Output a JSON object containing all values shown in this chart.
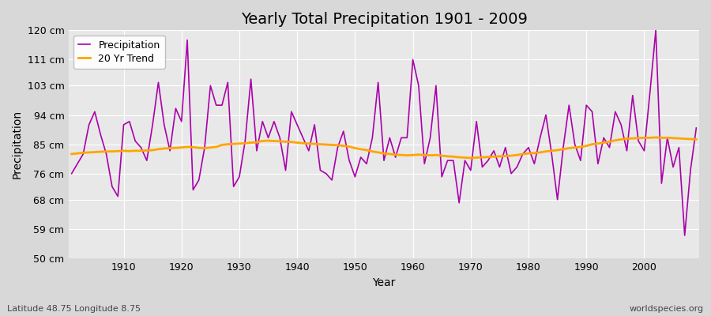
{
  "title": "Yearly Total Precipitation 1901 - 2009",
  "xlabel": "Year",
  "ylabel": "Precipitation",
  "subtitle": "Latitude 48.75 Longitude 8.75",
  "watermark": "worldspecies.org",
  "years": [
    1901,
    1902,
    1903,
    1904,
    1905,
    1906,
    1907,
    1908,
    1909,
    1910,
    1911,
    1912,
    1913,
    1914,
    1915,
    1916,
    1917,
    1918,
    1919,
    1920,
    1921,
    1922,
    1923,
    1924,
    1925,
    1926,
    1927,
    1928,
    1929,
    1930,
    1931,
    1932,
    1933,
    1934,
    1935,
    1936,
    1937,
    1938,
    1939,
    1940,
    1941,
    1942,
    1943,
    1944,
    1945,
    1946,
    1947,
    1948,
    1949,
    1950,
    1951,
    1952,
    1953,
    1954,
    1955,
    1956,
    1957,
    1958,
    1959,
    1960,
    1961,
    1962,
    1963,
    1964,
    1965,
    1966,
    1967,
    1968,
    1969,
    1970,
    1971,
    1972,
    1973,
    1974,
    1975,
    1976,
    1977,
    1978,
    1979,
    1980,
    1981,
    1982,
    1983,
    1984,
    1985,
    1986,
    1987,
    1988,
    1989,
    1990,
    1991,
    1992,
    1993,
    1994,
    1995,
    1996,
    1997,
    1998,
    1999,
    2000,
    2001,
    2002,
    2003,
    2004,
    2005,
    2006,
    2007,
    2008,
    2009
  ],
  "precip": [
    76,
    79,
    82,
    91,
    95,
    88,
    82,
    72,
    69,
    91,
    92,
    86,
    84,
    80,
    91,
    104,
    91,
    83,
    96,
    92,
    117,
    71,
    74,
    84,
    103,
    97,
    97,
    104,
    72,
    75,
    86,
    105,
    83,
    92,
    87,
    92,
    87,
    77,
    95,
    91,
    87,
    83,
    91,
    77,
    76,
    74,
    84,
    89,
    80,
    75,
    81,
    79,
    87,
    104,
    80,
    87,
    81,
    87,
    87,
    111,
    103,
    79,
    87,
    103,
    75,
    80,
    80,
    67,
    80,
    77,
    92,
    78,
    80,
    83,
    78,
    84,
    76,
    78,
    82,
    84,
    79,
    87,
    94,
    82,
    68,
    84,
    97,
    85,
    80,
    97,
    95,
    79,
    87,
    84,
    95,
    91,
    83,
    100,
    86,
    83,
    101,
    120,
    73,
    87,
    78,
    84,
    57,
    77,
    90
  ],
  "trend": [
    82.0,
    82.2,
    82.4,
    82.5,
    82.6,
    82.7,
    82.8,
    82.8,
    82.9,
    83.0,
    82.9,
    83.0,
    83.0,
    83.1,
    83.2,
    83.5,
    83.7,
    83.8,
    83.9,
    84.0,
    84.2,
    84.1,
    83.9,
    83.8,
    84.0,
    84.2,
    84.8,
    85.0,
    85.1,
    85.2,
    85.3,
    85.5,
    85.6,
    86.0,
    86.1,
    86.0,
    85.9,
    85.8,
    85.7,
    85.5,
    85.3,
    85.2,
    85.1,
    85.0,
    84.9,
    84.8,
    84.7,
    84.5,
    84.3,
    83.8,
    83.5,
    83.2,
    82.8,
    82.5,
    82.2,
    82.0,
    81.8,
    81.7,
    81.6,
    81.7,
    81.8,
    81.7,
    81.6,
    81.7,
    81.5,
    81.3,
    81.2,
    81.0,
    80.9,
    80.8,
    80.9,
    81.0,
    81.1,
    81.2,
    81.3,
    81.4,
    81.5,
    81.7,
    82.0,
    82.2,
    82.3,
    82.5,
    82.8,
    83.0,
    83.2,
    83.5,
    83.8,
    84.0,
    84.2,
    84.5,
    85.0,
    85.2,
    85.5,
    85.8,
    86.2,
    86.5,
    86.7,
    86.8,
    86.9,
    87.0,
    87.0,
    87.1,
    87.0,
    87.0,
    86.9,
    86.8,
    86.7,
    86.6,
    86.5
  ],
  "precip_color": "#aa00aa",
  "trend_color": "#FFA500",
  "fig_bg_color": "#d8d8d8",
  "plot_bg_color": "#e8e8e8",
  "grid_color": "#ffffff",
  "ylim": [
    50,
    120
  ],
  "yticks": [
    50,
    59,
    68,
    76,
    85,
    94,
    103,
    111,
    120
  ],
  "ytick_labels": [
    "50 cm",
    "59 cm",
    "68 cm",
    "76 cm",
    "85 cm",
    "94 cm",
    "103 cm",
    "111 cm",
    "120 cm"
  ],
  "xticks": [
    1910,
    1920,
    1930,
    1940,
    1950,
    1960,
    1970,
    1980,
    1990,
    2000
  ],
  "title_fontsize": 14,
  "label_fontsize": 10,
  "tick_fontsize": 9,
  "legend_fontsize": 9
}
